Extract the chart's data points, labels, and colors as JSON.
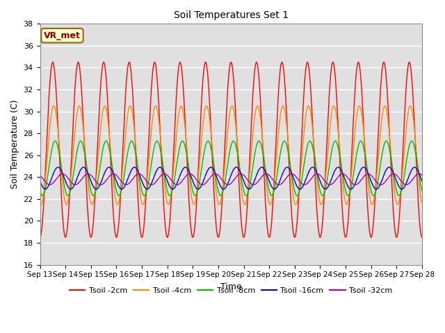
{
  "title": "Soil Temperatures Set 1",
  "xlabel": "Time",
  "ylabel": "Soil Temperature (C)",
  "ylim": [
    16,
    38
  ],
  "yticks": [
    16,
    18,
    20,
    22,
    24,
    26,
    28,
    30,
    32,
    34,
    36,
    38
  ],
  "n_days": 15,
  "annotation_text": "VR_met",
  "bg_color": "#e0e0e0",
  "grid_color": "#ffffff",
  "series": [
    {
      "label": "Tsoil -2cm",
      "color": "#ff0000",
      "amplitude": 8.0,
      "mean": 26.5,
      "phase_shift": 0.0,
      "trend": 0.0
    },
    {
      "label": "Tsoil -4cm",
      "color": "#ff8800",
      "amplitude": 4.5,
      "mean": 26.0,
      "phase_shift": 0.25,
      "trend": 0.0
    },
    {
      "label": "Tsoil -8cm",
      "color": "#00bb00",
      "amplitude": 2.5,
      "mean": 24.8,
      "phase_shift": 0.6,
      "trend": 0.0
    },
    {
      "label": "Tsoil -16cm",
      "color": "#0000cc",
      "amplitude": 1.0,
      "mean": 23.9,
      "phase_shift": 1.3,
      "trend": 0.0
    },
    {
      "label": "Tsoil -32cm",
      "color": "#aa00aa",
      "amplitude": 0.5,
      "mean": 23.8,
      "phase_shift": 2.4,
      "trend": 0.0
    }
  ],
  "day_start": 13,
  "n_day_ticks": 16
}
